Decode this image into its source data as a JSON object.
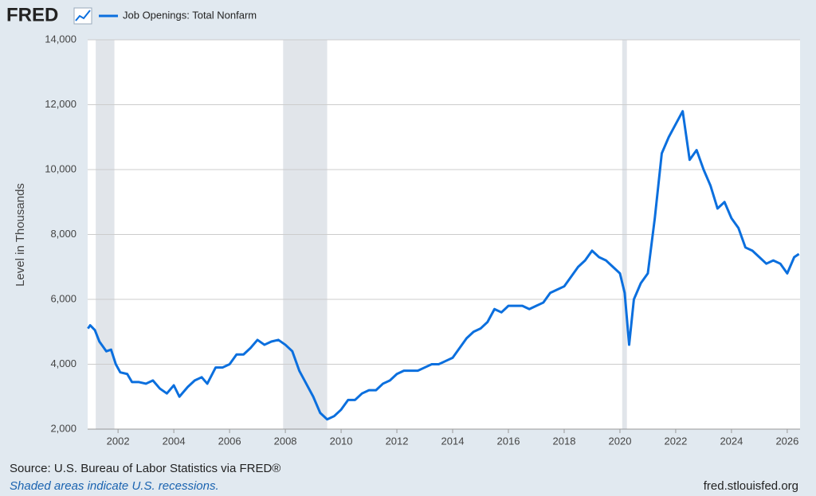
{
  "header": {
    "logo": "FRED"
  },
  "chart_data": {
    "type": "line",
    "x": [
      2000.92,
      2001.0,
      2001.17,
      2001.33,
      2001.58,
      2001.75,
      2001.92,
      2002.08,
      2002.33,
      2002.5,
      2002.75,
      2003.0,
      2003.25,
      2003.5,
      2003.75,
      2004.0,
      2004.2,
      2004.5,
      2004.75,
      2005.0,
      2005.2,
      2005.5,
      2005.75,
      2006.0,
      2006.25,
      2006.5,
      2006.75,
      2007.0,
      2007.25,
      2007.5,
      2007.75,
      2008.0,
      2008.25,
      2008.5,
      2008.75,
      2009.0,
      2009.25,
      2009.5,
      2009.75,
      2010.0,
      2010.25,
      2010.5,
      2010.75,
      2011.0,
      2011.25,
      2011.5,
      2011.75,
      2012.0,
      2012.25,
      2012.5,
      2012.75,
      2013.0,
      2013.25,
      2013.5,
      2013.75,
      2014.0,
      2014.25,
      2014.5,
      2014.75,
      2015.0,
      2015.25,
      2015.5,
      2015.75,
      2016.0,
      2016.25,
      2016.5,
      2016.75,
      2017.0,
      2017.25,
      2017.5,
      2017.75,
      2018.0,
      2018.25,
      2018.5,
      2018.75,
      2019.0,
      2019.25,
      2019.5,
      2019.75,
      2020.0,
      2020.17,
      2020.33,
      2020.5,
      2020.75,
      2021.0,
      2021.25,
      2021.5,
      2021.75,
      2022.0,
      2022.25,
      2022.5,
      2022.75,
      2023.0,
      2023.25,
      2023.5,
      2023.75,
      2024.0,
      2024.25,
      2024.5,
      2024.75,
      2025.0,
      2025.25,
      2025.5,
      2025.75,
      2026.0,
      2026.25,
      2026.42
    ],
    "series": [
      {
        "name": "Job Openings: Total Nonfarm",
        "color": "#0b6fde",
        "values": [
          5100,
          5200,
          5050,
          4700,
          4400,
          4450,
          4000,
          3750,
          3700,
          3450,
          3450,
          3400,
          3500,
          3250,
          3100,
          3350,
          3000,
          3300,
          3500,
          3600,
          3400,
          3900,
          3900,
          4000,
          4300,
          4300,
          4500,
          4750,
          4600,
          4700,
          4750,
          4600,
          4400,
          3800,
          3400,
          3000,
          2500,
          2300,
          2400,
          2600,
          2900,
          2900,
          3100,
          3200,
          3200,
          3400,
          3500,
          3700,
          3800,
          3800,
          3800,
          3900,
          4000,
          4000,
          4100,
          4200,
          4500,
          4800,
          5000,
          5100,
          5300,
          5700,
          5600,
          5800,
          5800,
          5800,
          5700,
          5800,
          5900,
          6200,
          6300,
          6400,
          6700,
          7000,
          7200,
          7500,
          7300,
          7200,
          7000,
          6800,
          6200,
          4600,
          6000,
          6500,
          6800,
          8500,
          10500,
          11000,
          11400,
          11800,
          10300,
          10600,
          10000,
          9500,
          8800,
          9000,
          8500,
          8200,
          7600,
          7500,
          7300,
          7100,
          7200,
          7100,
          6800,
          7300,
          7400
        ]
      }
    ],
    "y_label": "Level in Thousands",
    "xlim": [
      2000.91,
      2026.46
    ],
    "xticks": [
      2002,
      2004,
      2006,
      2008,
      2010,
      2012,
      2014,
      2016,
      2018,
      2020,
      2022,
      2024,
      2026
    ],
    "ylim": [
      2000,
      14000
    ],
    "yticks": [
      {
        "value": 2000,
        "label": "2,000"
      },
      {
        "value": 4000,
        "label": "4,000"
      },
      {
        "value": 6000,
        "label": "6,000"
      },
      {
        "value": 8000,
        "label": "8,000"
      },
      {
        "value": 10000,
        "label": "10,000"
      },
      {
        "value": 12000,
        "label": "12,000"
      },
      {
        "value": 14000,
        "label": "14,000"
      }
    ],
    "grid": true,
    "recessions": [
      [
        2001.2,
        2001.87
      ],
      [
        2007.92,
        2009.5
      ],
      [
        2020.08,
        2020.25
      ]
    ],
    "recession_color": "#e1e5ea"
  },
  "footer": {
    "source": "Source: U.S. Bureau of Labor Statistics via FRED®",
    "note": "Shaded areas indicate U.S. recessions.",
    "url": "fred.stlouisfed.org"
  }
}
